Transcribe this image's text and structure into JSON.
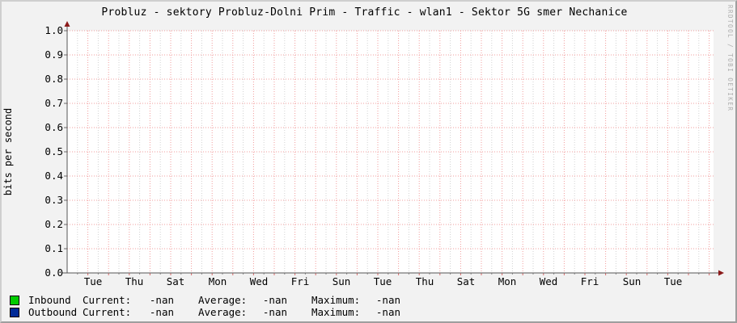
{
  "title": "Probluz - sektory Probluz-Dolni Prim - Traffic - wlan1 - Sektor 5G smer Nechanice",
  "watermark": "RRDTOOL / TOBI OETIKER",
  "chart_data": {
    "type": "line",
    "title": "Probluz - sektory Probluz-Dolni Prim - Traffic - wlan1 - Sektor 5G smer Nechanice",
    "xlabel": "",
    "ylabel": "bits per second",
    "ylim": [
      0.0,
      1.0
    ],
    "grid": "on",
    "legend_position": "bottom-left",
    "y_ticks": [
      "1.0",
      "0.9",
      "0.8",
      "0.7",
      "0.6",
      "0.5",
      "0.4",
      "0.3",
      "0.2",
      "0.1",
      "0.0"
    ],
    "x_ticks": [
      "Tue",
      "Thu",
      "Sat",
      "Mon",
      "Wed",
      "Fri",
      "Sun",
      "Tue",
      "Thu",
      "Sat",
      "Mon",
      "Wed",
      "Fri",
      "Sun",
      "Tue"
    ],
    "series": [
      {
        "name": "Inbound",
        "color": "#00cc00",
        "values": []
      },
      {
        "name": "Outbound",
        "color": "#002a97",
        "values": []
      }
    ],
    "no_data": true
  },
  "colors": {
    "background": "#f2f2f2",
    "canvas": "#ffffff",
    "major_grid": "#f29d9d",
    "minor_grid": "#d2d2d2",
    "axis": "#555555",
    "arrow": "#8b1a1a",
    "shade_light": "#cfcfcf",
    "shade_dark": "#9e9e9e"
  },
  "legend": {
    "rows": [
      {
        "name": "Inbound",
        "current_label": "Current:",
        "current": "-nan",
        "average_label": "Average:",
        "average": "-nan",
        "maximum_label": "Maximum:",
        "maximum": "-nan"
      },
      {
        "name": "Outbound",
        "current_label": "Current:",
        "current": "-nan",
        "average_label": "Average:",
        "average": "-nan",
        "maximum_label": "Maximum:",
        "maximum": "-nan"
      }
    ]
  }
}
